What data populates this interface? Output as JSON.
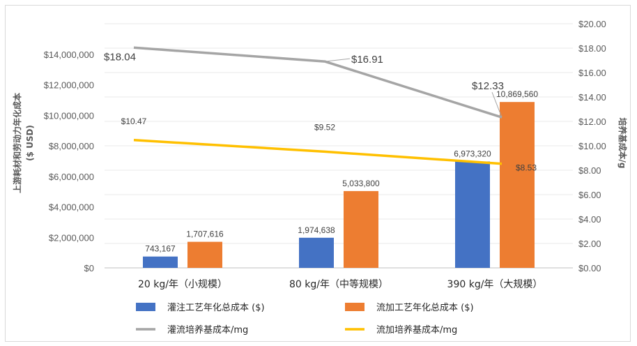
{
  "chart_data": {
    "type": "bar",
    "categories": [
      "20 kg/年（小规模）",
      "80 kg/年（中等规模）",
      "390 kg/年（大规模）"
    ],
    "y_left": {
      "title_line1": "上游耗材和劳动力年化成本",
      "title_line2": "($ USD)",
      "ylim": [
        0,
        16000000
      ],
      "ticks": [
        0,
        2000000,
        4000000,
        6000000,
        8000000,
        10000000,
        12000000,
        14000000
      ],
      "tick_labels": [
        "$0",
        "$2,000,000",
        "$4,000,000",
        "$6,000,000",
        "$8,000,000",
        "$10,000,000",
        "$12,000,000",
        "$14,000,000"
      ]
    },
    "y_right": {
      "title": "培养基成本/g",
      "ylim": [
        0,
        20
      ],
      "ticks": [
        0,
        2,
        4,
        6,
        8,
        10,
        12,
        14,
        16,
        18,
        20
      ],
      "tick_labels": [
        "$0.00",
        "$2.00",
        "$4.00",
        "$6.00",
        "$8.00",
        "$10.00",
        "$12.00",
        "$14.00",
        "$16.00",
        "$18.00",
        "$20.00"
      ]
    },
    "bar_series": [
      {
        "name": "灌注工艺年化总成本 ($)",
        "color": "#4472c4",
        "values": [
          743167,
          1974638,
          6973320
        ],
        "labels": [
          "743,167",
          "1,974,638",
          "6,973,320"
        ]
      },
      {
        "name": "流加工艺年化总成本 ($)",
        "color": "#ed7d31",
        "values": [
          1707616,
          5033800,
          10869560
        ],
        "labels": [
          "1,707,616",
          "5,033,800",
          "10,869,560"
        ]
      }
    ],
    "line_series": [
      {
        "name": "灌流培养基成本/mg",
        "color": "#a5a5a5",
        "values": [
          18.04,
          16.91,
          12.33
        ],
        "labels": [
          "$18.04",
          "$16.91",
          "$12.33"
        ]
      },
      {
        "name": "流加培养基成本/mg",
        "color": "#ffc000",
        "values": [
          10.47,
          9.52,
          8.53
        ],
        "labels": [
          "$10.47",
          "$9.52",
          "$8.53"
        ]
      }
    ],
    "legend_position": "bottom",
    "grid": true
  }
}
